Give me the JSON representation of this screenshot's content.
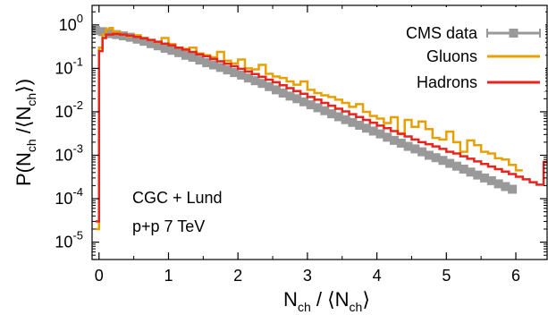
{
  "chart_data": {
    "type": "line",
    "xlabel": {
      "main": "N",
      "sub1": "ch",
      "mid": " / ⟨N",
      "sub2": "ch",
      "end": "⟩"
    },
    "ylabel": {
      "main": "P(N",
      "sub1": "ch",
      "mid": " /⟨N",
      "sub2": "ch",
      "end": "⟩)"
    },
    "xlim": [
      -0.1,
      6.45
    ],
    "ylim_log10": [
      -5.4,
      0.45
    ],
    "yscale": "log",
    "x_ticks": [
      0,
      1,
      2,
      3,
      4,
      5,
      6
    ],
    "y_ticks": [
      {
        "base": "10",
        "exp": "0",
        "log": 0
      },
      {
        "base": "10",
        "exp": "-1",
        "log": -1
      },
      {
        "base": "10",
        "exp": "-2",
        "log": -2
      },
      {
        "base": "10",
        "exp": "-3",
        "log": -3
      },
      {
        "base": "10",
        "exp": "-4",
        "log": -4
      },
      {
        "base": "10",
        "exp": "-5",
        "log": -5
      }
    ],
    "legend_position": "top-right",
    "annotations": [
      "CGC + Lund",
      "p+p 7 TeV"
    ],
    "colors": {
      "cms": "#999999",
      "gluons": "#e8a000",
      "hadrons": "#e8251c"
    },
    "series": [
      {
        "name": "CMS data",
        "style": "markers",
        "x": [
          -0.05,
          0.05,
          0.15,
          0.25,
          0.35,
          0.45,
          0.55,
          0.65,
          0.75,
          0.85,
          0.95,
          1.05,
          1.15,
          1.25,
          1.35,
          1.45,
          1.55,
          1.65,
          1.75,
          1.85,
          1.95,
          2.05,
          2.15,
          2.25,
          2.35,
          2.45,
          2.55,
          2.65,
          2.75,
          2.85,
          2.95,
          3.05,
          3.15,
          3.25,
          3.35,
          3.45,
          3.55,
          3.65,
          3.75,
          3.85,
          3.95,
          4.05,
          4.15,
          4.25,
          4.35,
          4.45,
          4.55,
          4.65,
          4.75,
          4.85,
          4.95,
          5.05,
          5.15,
          5.25,
          5.35,
          5.45,
          5.55,
          5.65,
          5.75,
          5.85,
          5.95
        ],
        "y": [
          0.75,
          0.7,
          0.63,
          0.6,
          0.56,
          0.52,
          0.47,
          0.42,
          0.37,
          0.33,
          0.29,
          0.26,
          0.23,
          0.2,
          0.18,
          0.155,
          0.135,
          0.12,
          0.105,
          0.092,
          0.08,
          0.07,
          0.06,
          0.052,
          0.045,
          0.038,
          0.032,
          0.027,
          0.023,
          0.02,
          0.017,
          0.0145,
          0.0124,
          0.0106,
          0.009,
          0.0077,
          0.0066,
          0.0057,
          0.0049,
          0.0042,
          0.0036,
          0.0031,
          0.0026,
          0.0022,
          0.0019,
          0.0016,
          0.0014,
          0.0012,
          0.001,
          0.00088,
          0.00076,
          0.00065,
          0.00056,
          0.00048,
          0.00041,
          0.00035,
          0.0003,
          0.00026,
          0.00022,
          0.00019,
          0.000165
        ]
      },
      {
        "name": "Gluons",
        "style": "step",
        "x": [
          -0.05,
          0,
          0.05,
          0.1,
          0.15,
          0.2,
          0.3,
          0.4,
          0.5,
          0.6,
          0.7,
          0.8,
          0.9,
          1.0,
          1.1,
          1.2,
          1.3,
          1.4,
          1.5,
          1.6,
          1.7,
          1.8,
          1.9,
          2.0,
          2.1,
          2.2,
          2.3,
          2.4,
          2.5,
          2.6,
          2.7,
          2.8,
          2.9,
          3.0,
          3.1,
          3.2,
          3.3,
          3.4,
          3.5,
          3.6,
          3.7,
          3.8,
          3.9,
          4.0,
          4.1,
          4.2,
          4.3,
          4.4,
          4.5,
          4.6,
          4.7,
          4.8,
          4.9,
          5.0,
          5.1,
          5.2,
          5.3,
          5.4,
          5.5,
          5.6,
          5.7,
          5.8,
          5.9,
          6.0
        ],
        "y": [
          2e-05,
          0.3,
          0.6,
          0.8,
          0.85,
          0.7,
          0.6,
          0.55,
          0.58,
          0.5,
          0.45,
          0.4,
          0.5,
          0.36,
          0.3,
          0.28,
          0.3,
          0.22,
          0.2,
          0.18,
          0.24,
          0.15,
          0.13,
          0.16,
          0.1,
          0.095,
          0.12,
          0.075,
          0.065,
          0.06,
          0.05,
          0.042,
          0.05,
          0.032,
          0.027,
          0.024,
          0.022,
          0.019,
          0.016,
          0.013,
          0.015,
          0.01,
          0.008,
          0.007,
          0.0055,
          0.0075,
          0.0032,
          0.0065,
          0.0045,
          0.006,
          0.004,
          0.0025,
          0.0023,
          0.0035,
          0.002,
          0.0012,
          0.0022,
          0.0017,
          0.0012,
          0.0011,
          0.00085,
          0.0008,
          0.0006,
          0.00045
        ]
      },
      {
        "name": "Hadrons",
        "style": "step",
        "x": [
          -0.05,
          0,
          0.05,
          0.1,
          0.2,
          0.3,
          0.4,
          0.5,
          0.6,
          0.7,
          0.8,
          0.9,
          1.0,
          1.1,
          1.2,
          1.3,
          1.4,
          1.5,
          1.6,
          1.7,
          1.8,
          1.9,
          2.0,
          2.1,
          2.2,
          2.3,
          2.4,
          2.5,
          2.6,
          2.7,
          2.8,
          2.9,
          3.0,
          3.1,
          3.2,
          3.3,
          3.4,
          3.5,
          3.6,
          3.7,
          3.8,
          3.9,
          4.0,
          4.1,
          4.2,
          4.3,
          4.4,
          4.5,
          4.6,
          4.7,
          4.8,
          4.9,
          5.0,
          5.1,
          5.2,
          5.3,
          5.4,
          5.5,
          5.6,
          5.7,
          5.8,
          5.9,
          6.0,
          6.1,
          6.2,
          6.3,
          6.4
        ],
        "y": [
          3e-05,
          0.25,
          0.5,
          0.6,
          0.62,
          0.6,
          0.57,
          0.53,
          0.49,
          0.45,
          0.41,
          0.37,
          0.34,
          0.3,
          0.27,
          0.24,
          0.21,
          0.19,
          0.165,
          0.145,
          0.128,
          0.112,
          0.098,
          0.085,
          0.074,
          0.064,
          0.055,
          0.048,
          0.041,
          0.035,
          0.03,
          0.026,
          0.022,
          0.019,
          0.016,
          0.0138,
          0.0118,
          0.0102,
          0.0088,
          0.0076,
          0.0065,
          0.0056,
          0.0048,
          0.0042,
          0.0036,
          0.0031,
          0.0027,
          0.0023,
          0.002,
          0.0018,
          0.0016,
          0.0014,
          0.0012,
          0.0011,
          0.00095,
          0.00083,
          0.00072,
          0.00063,
          0.00055,
          0.00048,
          0.00042,
          0.00037,
          0.00032,
          0.00028,
          0.00024,
          0.00021,
          0.0007
        ]
      }
    ]
  }
}
